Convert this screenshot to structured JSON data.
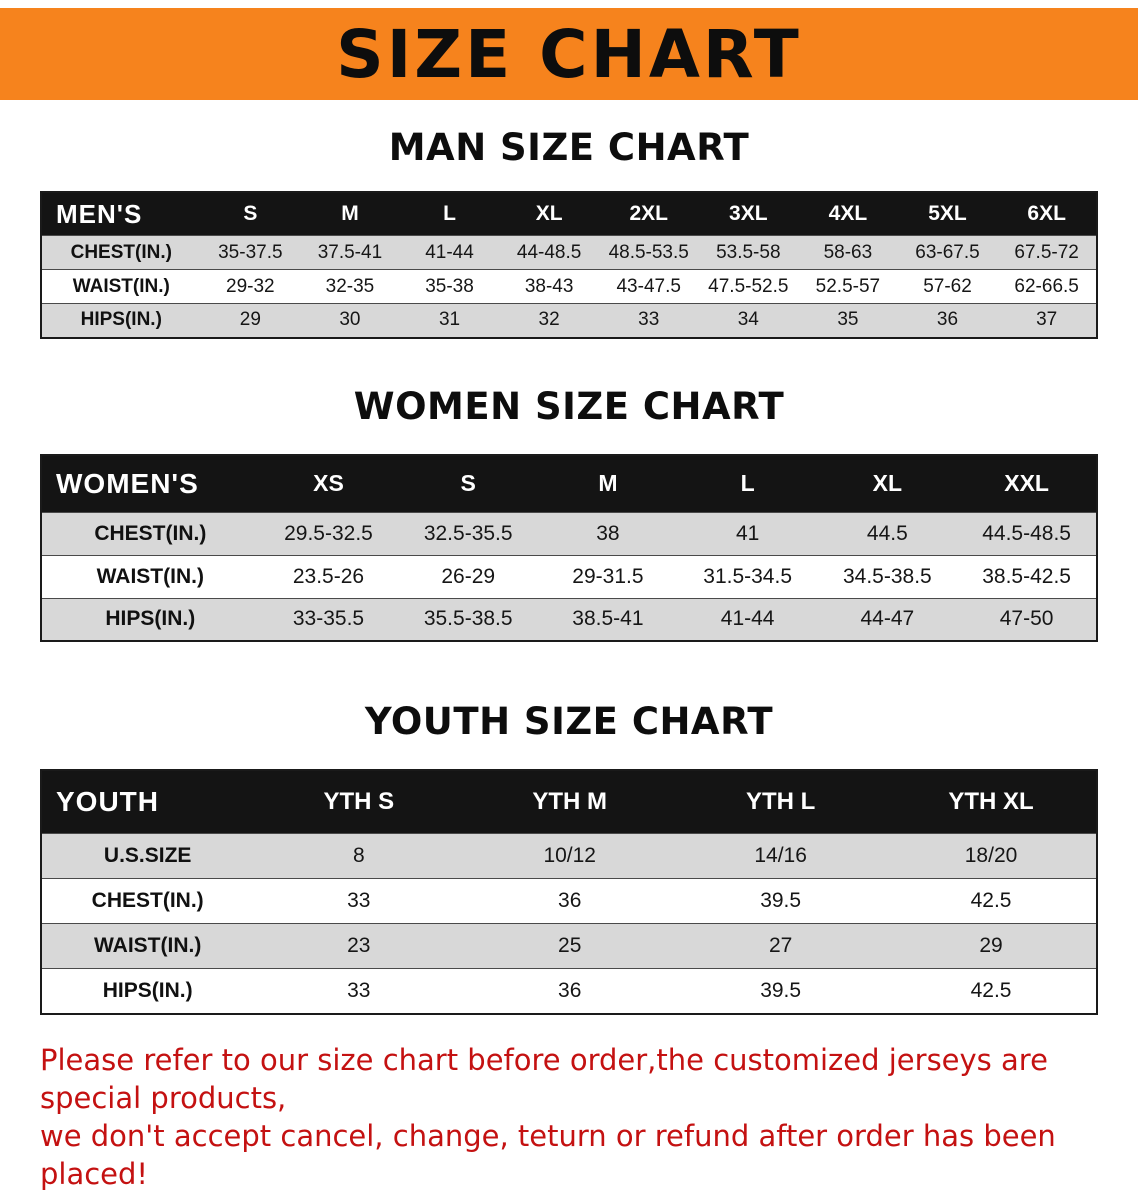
{
  "banner": {
    "title": "SIZE CHART"
  },
  "colors": {
    "banner_bg": "#f6831d",
    "header_bg": "#141414",
    "stripe": "#d8d8d8",
    "disclaimer_text": "#c41111"
  },
  "sections": [
    {
      "id": "mens",
      "heading": "MAN SIZE CHART",
      "table": {
        "header": [
          "MEN'S",
          "S",
          "M",
          "L",
          "XL",
          "2XL",
          "3XL",
          "4XL",
          "5XL",
          "6XL"
        ],
        "rows": [
          [
            "CHEST(IN.)",
            "35-37.5",
            "37.5-41",
            "41-44",
            "44-48.5",
            "48.5-53.5",
            "53.5-58",
            "58-63",
            "63-67.5",
            "67.5-72"
          ],
          [
            "WAIST(IN.)",
            "29-32",
            "32-35",
            "35-38",
            "38-43",
            "43-47.5",
            "47.5-52.5",
            "52.5-57",
            "57-62",
            "62-66.5"
          ],
          [
            "HIPS(IN.)",
            "29",
            "30",
            "31",
            "32",
            "33",
            "34",
            "35",
            "36",
            "37"
          ]
        ]
      }
    },
    {
      "id": "womens",
      "heading": "WOMEN SIZE CHART",
      "table": {
        "header": [
          "WOMEN'S",
          "XS",
          "S",
          "M",
          "L",
          "XL",
          "XXL"
        ],
        "rows": [
          [
            "CHEST(IN.)",
            "29.5-32.5",
            "32.5-35.5",
            "38",
            "41",
            "44.5",
            "44.5-48.5"
          ],
          [
            "WAIST(IN.)",
            "23.5-26",
            "26-29",
            "29-31.5",
            "31.5-34.5",
            "34.5-38.5",
            "38.5-42.5"
          ],
          [
            "HIPS(IN.)",
            "33-35.5",
            "35.5-38.5",
            "38.5-41",
            "41-44",
            "44-47",
            "47-50"
          ]
        ]
      }
    },
    {
      "id": "youth",
      "heading": "YOUTH SIZE CHART",
      "table": {
        "header": [
          "YOUTH",
          "YTH S",
          "YTH M",
          "YTH L",
          "YTH XL"
        ],
        "rows": [
          [
            "U.S.SIZE",
            "8",
            "10/12",
            "14/16",
            "18/20"
          ],
          [
            "CHEST(IN.)",
            "33",
            "36",
            "39.5",
            "42.5"
          ],
          [
            "WAIST(IN.)",
            "23",
            "25",
            "27",
            "29"
          ],
          [
            "HIPS(IN.)",
            "33",
            "36",
            "39.5",
            "42.5"
          ]
        ]
      }
    }
  ],
  "disclaimer": {
    "line1": "Please refer to our size chart before order,the customized jerseys are special products,",
    "line2": "we don't accept cancel, change, teturn or refund after order has been placed!"
  }
}
